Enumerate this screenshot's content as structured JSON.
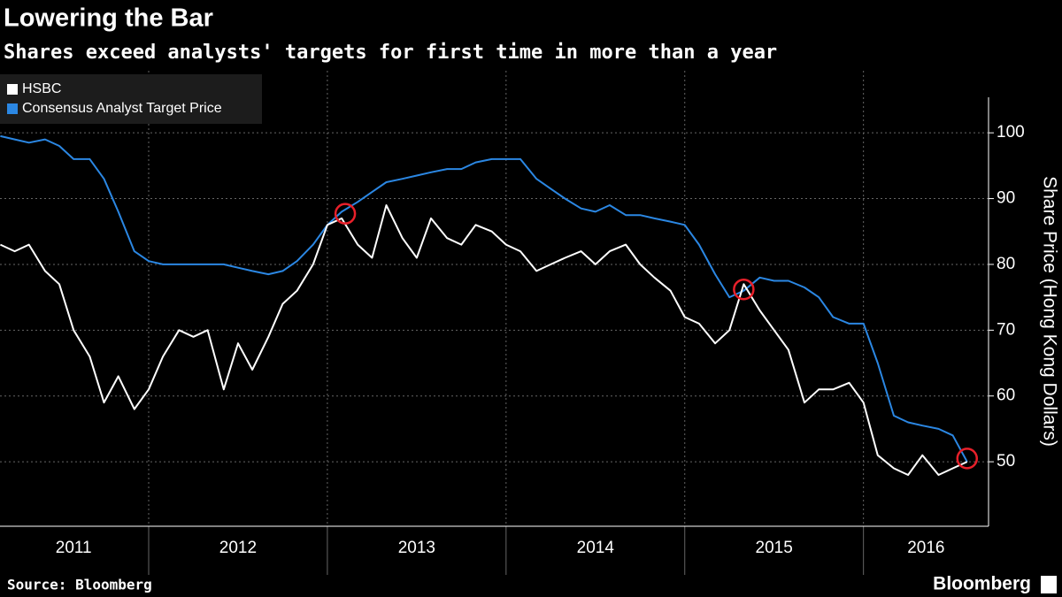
{
  "chart_data": {
    "type": "line",
    "title": "Lowering the Bar",
    "subtitle": "Shares exceed analysts' targets for first time in more than a year",
    "y_label": "Share Price (Hong Kong Dollars)",
    "source": "Source: Bloomberg",
    "brand": "Bloomberg",
    "x": [
      2011.17,
      2011.25,
      2011.33,
      2011.42,
      2011.5,
      2011.58,
      2011.67,
      2011.75,
      2011.83,
      2011.92,
      2012,
      2012.08,
      2012.17,
      2012.25,
      2012.33,
      2012.42,
      2012.5,
      2012.58,
      2012.67,
      2012.75,
      2012.83,
      2012.92,
      2013,
      2013.08,
      2013.17,
      2013.25,
      2013.33,
      2013.42,
      2013.5,
      2013.58,
      2013.67,
      2013.75,
      2013.83,
      2013.92,
      2014,
      2014.08,
      2014.17,
      2014.25,
      2014.33,
      2014.42,
      2014.5,
      2014.58,
      2014.67,
      2014.75,
      2014.83,
      2014.92,
      2015,
      2015.08,
      2015.17,
      2015.25,
      2015.33,
      2015.42,
      2015.5,
      2015.58,
      2015.67,
      2015.75,
      2015.83,
      2015.92,
      2016,
      2016.08,
      2016.17,
      2016.25,
      2016.33,
      2016.42,
      2016.5,
      2016.58
    ],
    "series": [
      {
        "name": "HSBC",
        "color": "#ffffff",
        "values": [
          83,
          82,
          83,
          79,
          77,
          70,
          66,
          59,
          63,
          58,
          61,
          66,
          70,
          69,
          70,
          61,
          68,
          64,
          69,
          74,
          76,
          80,
          86,
          87,
          83,
          81,
          89,
          84,
          81,
          87,
          84,
          83,
          86,
          85,
          83,
          82,
          79,
          80,
          81,
          82,
          80,
          82,
          83,
          80,
          78,
          76,
          72,
          71,
          68,
          70,
          77,
          73,
          70,
          67,
          59,
          61,
          61,
          62,
          59,
          51,
          49,
          48,
          51,
          48,
          49,
          50
        ]
      },
      {
        "name": "Consensus Analyst Target Price",
        "color": "#2b87e3",
        "values": [
          99.5,
          99,
          98.5,
          99,
          98,
          96,
          96,
          93,
          88,
          82,
          80.5,
          80,
          80,
          80,
          80,
          80,
          79.5,
          79,
          78.5,
          79,
          80.5,
          83,
          86,
          88,
          89.5,
          91,
          92.5,
          93,
          93.5,
          94,
          94.5,
          94.5,
          95.5,
          96,
          96,
          96,
          93,
          91.5,
          90,
          88.5,
          88,
          89,
          87.5,
          87.5,
          87,
          86.5,
          86,
          83,
          78.5,
          75,
          76,
          78,
          77.5,
          77.5,
          76.5,
          75,
          72,
          71,
          71,
          65,
          57,
          56,
          55.5,
          55,
          54,
          50
        ]
      }
    ],
    "highlights": [
      {
        "x": 2013.1,
        "y": 87.7
      },
      {
        "x": 2015.33,
        "y": 76.2
      },
      {
        "x": 2016.58,
        "y": 50.5
      }
    ],
    "xlim": [
      2011.168,
      2016.7
    ],
    "xticks": [
      {
        "value": 2011.58,
        "label": "2011"
      },
      {
        "value": 2012.5,
        "label": "2012"
      },
      {
        "value": 2013.5,
        "label": "2013"
      },
      {
        "value": 2014.5,
        "label": "2014"
      },
      {
        "value": 2015.5,
        "label": "2015"
      },
      {
        "value": 2016.35,
        "label": "2016"
      }
    ],
    "xgrid": [
      2012,
      2013,
      2014,
      2015,
      2016
    ],
    "ylim": [
      40.2,
      105.4
    ],
    "yticks": [
      50,
      60,
      70,
      80,
      90,
      100
    ],
    "grid": true,
    "legend": "top-left"
  }
}
